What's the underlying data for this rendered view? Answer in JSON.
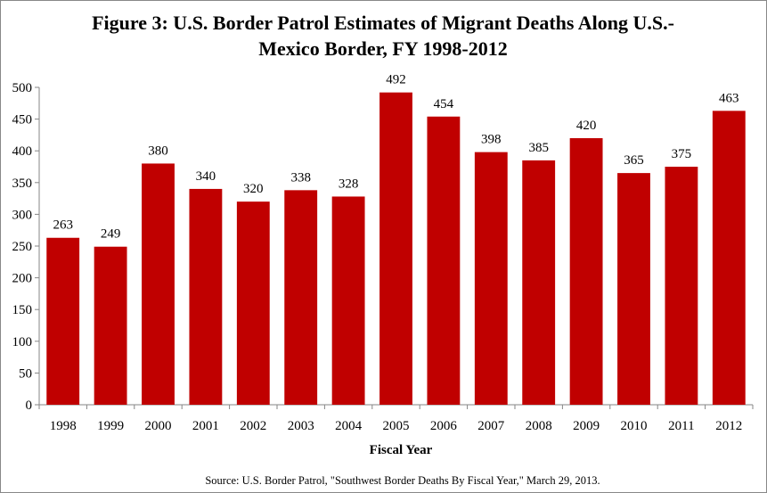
{
  "chart_data": {
    "type": "bar",
    "title_lines": [
      "Figure 3: U.S. Border Patrol Estimates of Migrant Deaths Along U.S.-",
      "Mexico Border, FY 1998-2012"
    ],
    "categories": [
      "1998",
      "1999",
      "2000",
      "2001",
      "2002",
      "2003",
      "2004",
      "2005",
      "2006",
      "2007",
      "2008",
      "2009",
      "2010",
      "2011",
      "2012"
    ],
    "values": [
      263,
      249,
      380,
      340,
      320,
      338,
      328,
      492,
      454,
      398,
      385,
      420,
      365,
      375,
      463
    ],
    "xlabel": "Fiscal Year",
    "ylabel": "",
    "ylim": [
      0,
      500
    ],
    "yticks": [
      0,
      50,
      100,
      150,
      200,
      250,
      300,
      350,
      400,
      450,
      500
    ],
    "bar_color": "#C00000",
    "grid": false,
    "legend": "none"
  },
  "source": "Source: U.S. Border Patrol, \"Southwest Border Deaths By Fiscal Year,\" March 29, 2013."
}
